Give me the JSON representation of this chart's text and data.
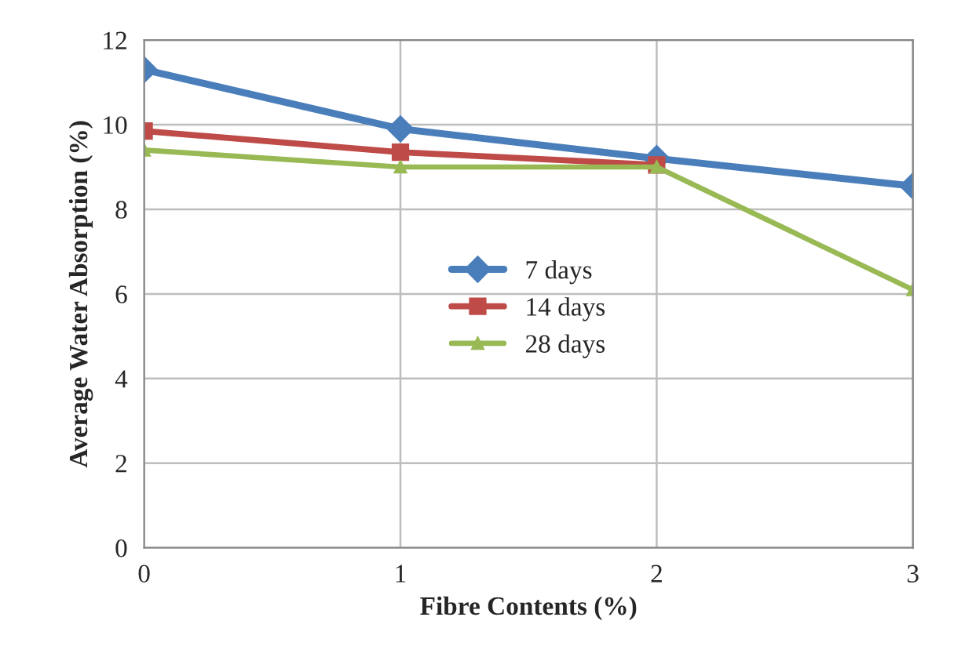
{
  "chart_data": {
    "type": "line",
    "xlabel": "Fibre Contents (%)",
    "ylabel": "Average Water Absorption (%)",
    "x": [
      0,
      1,
      2,
      3
    ],
    "xlim": [
      0,
      3
    ],
    "xticks": [
      0,
      1,
      2,
      3
    ],
    "ylim": [
      0,
      12
    ],
    "yticks": [
      0,
      2,
      4,
      6,
      8,
      10,
      12
    ],
    "grid": true,
    "legend": "center",
    "line_style": "solid",
    "series": [
      {
        "name": "7 days",
        "color": "#4a7ebb",
        "marker": "diamond",
        "values": [
          11.3,
          9.9,
          9.2,
          8.55
        ]
      },
      {
        "name": "14 days",
        "color": "#be4b48",
        "marker": "square",
        "values": [
          9.85,
          9.35,
          9.05,
          null
        ]
      },
      {
        "name": "28 days",
        "color": "#98b954",
        "marker": "triangle",
        "values": [
          9.4,
          9.0,
          9.0,
          6.1
        ]
      }
    ]
  }
}
